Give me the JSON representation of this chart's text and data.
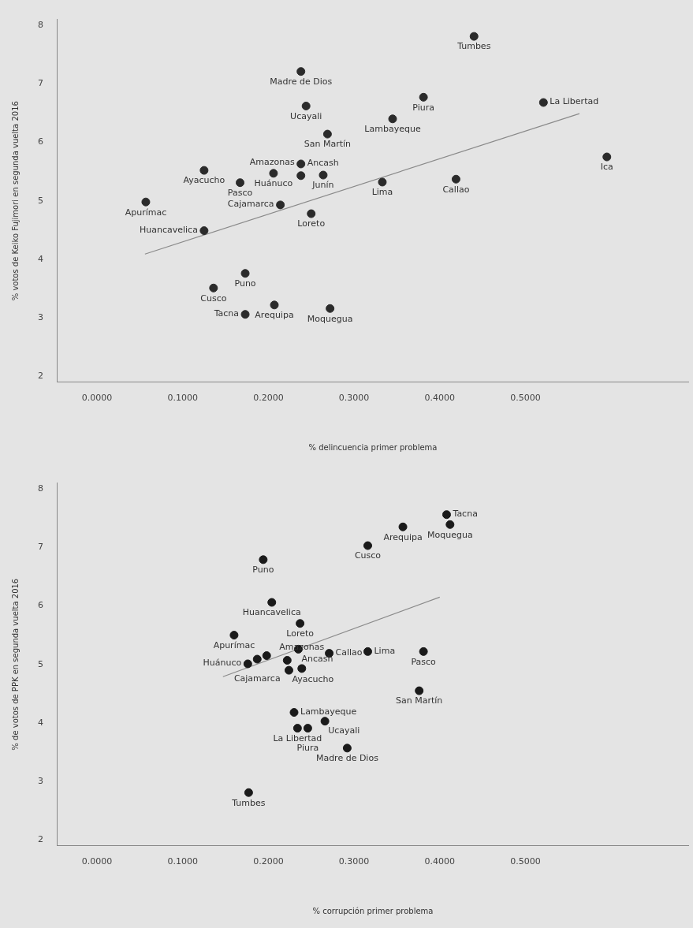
{
  "chart_data": [
    {
      "type": "scatter",
      "xlabel": "% delincuencia primer problema",
      "ylabel": "% votos de Keiko Fujimori en segunda vuelta 2016",
      "xlim": [
        -0.046,
        0.69
      ],
      "ylim": [
        1.9,
        8.1
      ],
      "xticks": [
        {
          "value": 0,
          "label": "0.0000"
        },
        {
          "value": 0.1,
          "label": "0.1000"
        },
        {
          "value": 0.2,
          "label": "0.2000"
        },
        {
          "value": 0.3,
          "label": "0.3000"
        },
        {
          "value": 0.4,
          "label": "0.4000"
        },
        {
          "value": 0.5,
          "label": "0.5000"
        }
      ],
      "yticks": [
        2,
        3,
        4,
        5,
        6,
        7,
        8
      ],
      "grid": false,
      "series": [
        {
          "color": "#2b2b2b",
          "marker": "circle",
          "x": [
            0.238,
            0.244,
            0.269,
            0.238,
            0.206,
            0.238,
            0.264,
            0.125,
            0.167,
            0.057,
            0.214,
            0.25,
            0.125,
            0.173,
            0.136,
            0.207,
            0.173,
            0.272,
            0.44,
            0.381,
            0.345,
            0.521,
            0.595,
            0.333,
            0.419
          ],
          "values": [
            7.21,
            6.62,
            6.14,
            5.63,
            5.47,
            5.43,
            5.44,
            5.52,
            5.31,
            4.98,
            4.93,
            4.78,
            4.49,
            3.76,
            3.51,
            3.22,
            3.06,
            3.16,
            7.81,
            6.77,
            6.4,
            6.68,
            5.75,
            5.32,
            5.37
          ]
        },
        {
          "type": "line",
          "color": "#8a8a8a",
          "x": [
            0.056,
            0.563
          ],
          "values": [
            4.09,
            6.49
          ]
        }
      ],
      "annotations": [
        {
          "text": "Madre de Dios",
          "x": 0.238,
          "y": 7.21
        },
        {
          "text": "Ucayali",
          "x": 0.244,
          "y": 6.62
        },
        {
          "text": "San Martín",
          "x": 0.269,
          "y": 6.14
        },
        {
          "text": "Ancash",
          "x": 0.238,
          "y": 5.63
        },
        {
          "text": "Huánuco",
          "x": 0.206,
          "y": 5.47
        },
        {
          "text": "Amazonas",
          "x": 0.238,
          "y": 5.43
        },
        {
          "text": "Junín",
          "x": 0.264,
          "y": 5.44
        },
        {
          "text": "Ayacucho",
          "x": 0.125,
          "y": 5.52
        },
        {
          "text": "Pasco",
          "x": 0.167,
          "y": 5.31
        },
        {
          "text": "Apurímac",
          "x": 0.057,
          "y": 4.98
        },
        {
          "text": "Cajamarca",
          "x": 0.214,
          "y": 4.93
        },
        {
          "text": "Loreto",
          "x": 0.25,
          "y": 4.78
        },
        {
          "text": "Huancavelica",
          "x": 0.125,
          "y": 4.49
        },
        {
          "text": "Puno",
          "x": 0.173,
          "y": 3.76
        },
        {
          "text": "Cusco",
          "x": 0.136,
          "y": 3.51
        },
        {
          "text": "Arequipa",
          "x": 0.207,
          "y": 3.22
        },
        {
          "text": "Tacna",
          "x": 0.173,
          "y": 3.06
        },
        {
          "text": "Moquegua",
          "x": 0.272,
          "y": 3.16
        },
        {
          "text": "Tumbes",
          "x": 0.44,
          "y": 7.81
        },
        {
          "text": "Piura",
          "x": 0.381,
          "y": 6.77
        },
        {
          "text": "Lambayeque",
          "x": 0.345,
          "y": 6.4
        },
        {
          "text": "La Libertad",
          "x": 0.521,
          "y": 6.68
        },
        {
          "text": "Ica",
          "x": 0.595,
          "y": 5.75
        },
        {
          "text": "Lima",
          "x": 0.333,
          "y": 5.32
        },
        {
          "text": "Callao",
          "x": 0.419,
          "y": 5.37
        }
      ]
    },
    {
      "type": "scatter",
      "xlabel": "% corrupción primer problema",
      "ylabel": "% de votos de PPK en segunda vuelta 2016",
      "xlim": [
        -0.046,
        0.69
      ],
      "ylim": [
        1.9,
        8.1
      ],
      "xticks": [
        {
          "value": 0,
          "label": "0.0000"
        },
        {
          "value": 0.1,
          "label": "0.1000"
        },
        {
          "value": 0.2,
          "label": "0.2000"
        },
        {
          "value": 0.3,
          "label": "0.3000"
        },
        {
          "value": 0.4,
          "label": "0.4000"
        },
        {
          "value": 0.5,
          "label": "0.5000"
        }
      ],
      "yticks": [
        2,
        3,
        4,
        5,
        6,
        7,
        8
      ],
      "grid": false,
      "series": [
        {
          "color": "#1a1a1a",
          "marker": "circle",
          "x": [
            0.357,
            0.408,
            0.412,
            0.316,
            0.194,
            0.204,
            0.237,
            0.16,
            0.235,
            0.187,
            0.176,
            0.224,
            0.239,
            0.198,
            0.222,
            0.271,
            0.316,
            0.381,
            0.376,
            0.23,
            0.234,
            0.246,
            0.266,
            0.292,
            0.177
          ],
          "values": [
            7.35,
            7.56,
            7.39,
            7.03,
            6.79,
            6.06,
            5.7,
            5.5,
            5.26,
            5.09,
            5.01,
            4.9,
            4.93,
            5.15,
            5.07,
            5.19,
            5.22,
            5.22,
            4.55,
            4.18,
            3.91,
            3.91,
            4.03,
            3.57,
            2.81
          ]
        },
        {
          "type": "line",
          "color": "#8a8a8a",
          "x": [
            0.147,
            0.4
          ],
          "values": [
            4.79,
            6.15
          ]
        }
      ],
      "annotations": [
        {
          "text": "Arequipa",
          "x": 0.357,
          "y": 7.35
        },
        {
          "text": "Tacna",
          "x": 0.408,
          "y": 7.56
        },
        {
          "text": "Moquegua",
          "x": 0.412,
          "y": 7.39
        },
        {
          "text": "Cusco",
          "x": 0.316,
          "y": 7.03
        },
        {
          "text": "Puno",
          "x": 0.194,
          "y": 6.79
        },
        {
          "text": "Huancavelica",
          "x": 0.204,
          "y": 6.06
        },
        {
          "text": "Loreto",
          "x": 0.237,
          "y": 5.7
        },
        {
          "text": "Apurímac",
          "x": 0.16,
          "y": 5.5
        },
        {
          "text": "Ancash",
          "x": 0.235,
          "y": 5.26
        },
        {
          "text": "Cajamarca",
          "x": 0.187,
          "y": 5.09
        },
        {
          "text": "Huánuco",
          "x": 0.176,
          "y": 5.01
        },
        {
          "text": "Ayacucho",
          "x": 0.224,
          "y": 4.9
        },
        {
          "text": "Amazonas",
          "x": 0.239,
          "y": 4.93
        },
        {
          "text": "Callao",
          "x": 0.271,
          "y": 5.19
        },
        {
          "text": "Lima",
          "x": 0.316,
          "y": 5.22
        },
        {
          "text": "Pasco",
          "x": 0.381,
          "y": 5.22
        },
        {
          "text": "San Martín",
          "x": 0.376,
          "y": 4.55
        },
        {
          "text": "Lambayeque",
          "x": 0.23,
          "y": 4.18
        },
        {
          "text": "La Libertad",
          "x": 0.234,
          "y": 3.91
        },
        {
          "text": "Piura",
          "x": 0.246,
          "y": 3.91
        },
        {
          "text": "Ucayali",
          "x": 0.266,
          "y": 4.03
        },
        {
          "text": "Madre de Dios",
          "x": 0.292,
          "y": 3.57
        },
        {
          "text": "Tumbes",
          "x": 0.177,
          "y": 2.81
        }
      ]
    }
  ]
}
